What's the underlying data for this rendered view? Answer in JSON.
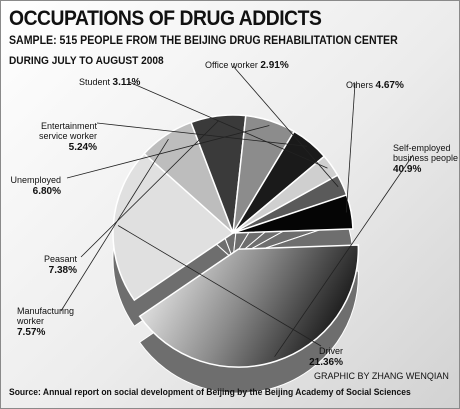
{
  "title": "OCCUPATIONS OF DRUG ADDICTS",
  "subtitle": "SAMPLE: 515 PEOPLE FROM THE BEIJING DRUG REHABILITATION CENTER",
  "period": "DURING JULY TO AUGUST 2008",
  "credit": "GRAPHIC BY ZHANG WENQIAN",
  "source": "Source: Annual report on social development of Beijing by the Beijing Academy of Social Sciences",
  "chart_data": {
    "type": "pie",
    "title": "OCCUPATIONS OF DRUG ADDICTS",
    "slices": [
      {
        "label": "Self-employed business people",
        "label_lines": [
          "Self-employed",
          "business people"
        ],
        "pct_text": "40.9%",
        "value": 40.9,
        "color": "#7a7a7a"
      },
      {
        "label": "Driver",
        "label_lines": [
          "Driver"
        ],
        "pct_text": "21.36%",
        "value": 21.36,
        "color": "#e0e0e0"
      },
      {
        "label": "Manufacturing worker",
        "label_lines": [
          "Manufacturing",
          "worker"
        ],
        "pct_text": "7.57%",
        "value": 7.57,
        "color": "#bdbdbd"
      },
      {
        "label": "Peasant",
        "label_lines": [
          "Peasant"
        ],
        "pct_text": "7.38%",
        "value": 7.38,
        "color": "#3a3a3a"
      },
      {
        "label": "Unemployed",
        "label_lines": [
          "Unemployed"
        ],
        "pct_text": "6.80%",
        "value": 6.8,
        "color": "#8c8c8c"
      },
      {
        "label": "Entertainment service worker",
        "label_lines": [
          "Entertainment",
          "service worker"
        ],
        "pct_text": "5.24%",
        "value": 5.24,
        "color": "#1a1a1a"
      },
      {
        "label": "Student",
        "label_lines": [
          "Student"
        ],
        "pct_text": "3.11%",
        "value": 3.11,
        "color": "#cfcfcf"
      },
      {
        "label": "Office worker",
        "label_lines": [
          "Office worker"
        ],
        "pct_text": "2.91%",
        "value": 2.91,
        "color": "#5a5a5a"
      },
      {
        "label": "Others",
        "label_lines": [
          "Others"
        ],
        "pct_text": "4.67%",
        "value": 4.67,
        "color": "#050505"
      }
    ]
  }
}
